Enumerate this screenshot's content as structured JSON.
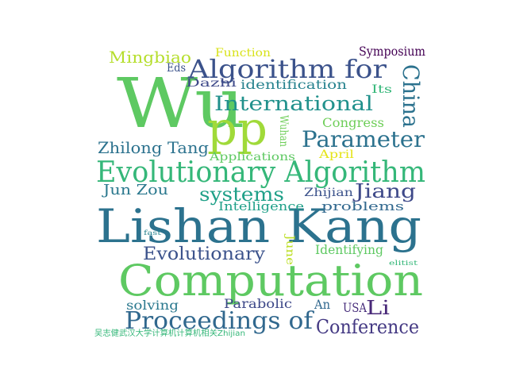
{
  "words": [
    {
      "text": "Wu",
      "color": "#5ec962"
    },
    {
      "text": "pp",
      "color": "#a0da39"
    },
    {
      "text": "Lishan Kang",
      "color": "#2c728e"
    },
    {
      "text": "Computation",
      "color": "#5ec962"
    },
    {
      "text": "Algorithm for",
      "color": "#3b528b"
    },
    {
      "text": "China",
      "color": "#2c728e"
    },
    {
      "text": "Evolutionary Algorithm",
      "color": "#35b779"
    },
    {
      "text": "Proceedings of",
      "color": "#31688e"
    },
    {
      "text": "Parameter",
      "color": "#2c728e"
    },
    {
      "text": "International",
      "color": "#21918c"
    },
    {
      "text": "Evolutionary",
      "color": "#3b528b"
    },
    {
      "text": "Li",
      "color": "#482878"
    },
    {
      "text": "Jiang",
      "color": "#3e4989"
    },
    {
      "text": "Conference",
      "color": "#443983"
    },
    {
      "text": "systems",
      "color": "#1fa088"
    },
    {
      "text": "Zhilong Tang",
      "color": "#2c728e"
    },
    {
      "text": "Mingbiao",
      "color": "#b5de2b"
    },
    {
      "text": "Jun Zou",
      "color": "#2a788e"
    },
    {
      "text": "Symposium",
      "color": "#440154"
    },
    {
      "text": "identification",
      "color": "#26828e"
    },
    {
      "text": "Congress",
      "color": "#6ece58"
    },
    {
      "text": "Parabolic",
      "color": "#3e4989"
    },
    {
      "text": "solving",
      "color": "#2a788e"
    },
    {
      "text": "Identifying",
      "color": "#5ec962"
    },
    {
      "text": "Intelligence",
      "color": "#1fa088"
    },
    {
      "text": "problems",
      "color": "#31688e"
    },
    {
      "text": "Applications",
      "color": "#5ec962"
    },
    {
      "text": "Zhijian",
      "color": "#3b528b"
    },
    {
      "text": "USA",
      "color": "#472d7b"
    },
    {
      "text": "An",
      "color": "#31688e"
    },
    {
      "text": "Dazhi",
      "color": "#3e4989"
    },
    {
      "text": "Eds",
      "color": "#3b528b"
    },
    {
      "text": "Its",
      "color": "#35b779"
    },
    {
      "text": "Function",
      "color": "#d8e219"
    },
    {
      "text": "April",
      "color": "#e5e419"
    },
    {
      "text": "Wuhan",
      "color": "#6ece58"
    },
    {
      "text": "June",
      "color": "#bddf26"
    },
    {
      "text": "fast",
      "color": "#26828e"
    },
    {
      "text": "elitist",
      "color": "#35b779"
    },
    {
      "text": "吴志健武汉大学计算机计算机相关Zhijian",
      "color": "#35b779"
    }
  ]
}
